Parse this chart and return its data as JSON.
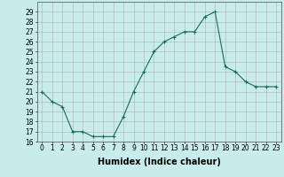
{
  "x": [
    0,
    1,
    2,
    3,
    4,
    5,
    6,
    7,
    8,
    9,
    10,
    11,
    12,
    13,
    14,
    15,
    16,
    17,
    18,
    19,
    20,
    21,
    22,
    23
  ],
  "y": [
    21,
    20,
    19.5,
    17,
    17,
    16.5,
    16.5,
    16.5,
    18.5,
    21,
    23,
    25,
    26,
    26.5,
    27,
    27,
    28.5,
    29,
    23.5,
    23,
    22,
    21.5,
    21.5,
    21.5
  ],
  "line_color": "#1a6b5a",
  "marker": "+",
  "marker_size": 3,
  "background_color": "#c8ecec",
  "grid_color": "#b0b0b0",
  "xlabel": "Humidex (Indice chaleur)",
  "xlim": [
    -0.5,
    23.5
  ],
  "ylim": [
    16,
    30
  ],
  "yticks": [
    16,
    17,
    18,
    19,
    20,
    21,
    22,
    23,
    24,
    25,
    26,
    27,
    28,
    29
  ],
  "xticks": [
    0,
    1,
    2,
    3,
    4,
    5,
    6,
    7,
    8,
    9,
    10,
    11,
    12,
    13,
    14,
    15,
    16,
    17,
    18,
    19,
    20,
    21,
    22,
    23
  ],
  "label_fontsize": 7,
  "tick_fontsize": 5.5
}
